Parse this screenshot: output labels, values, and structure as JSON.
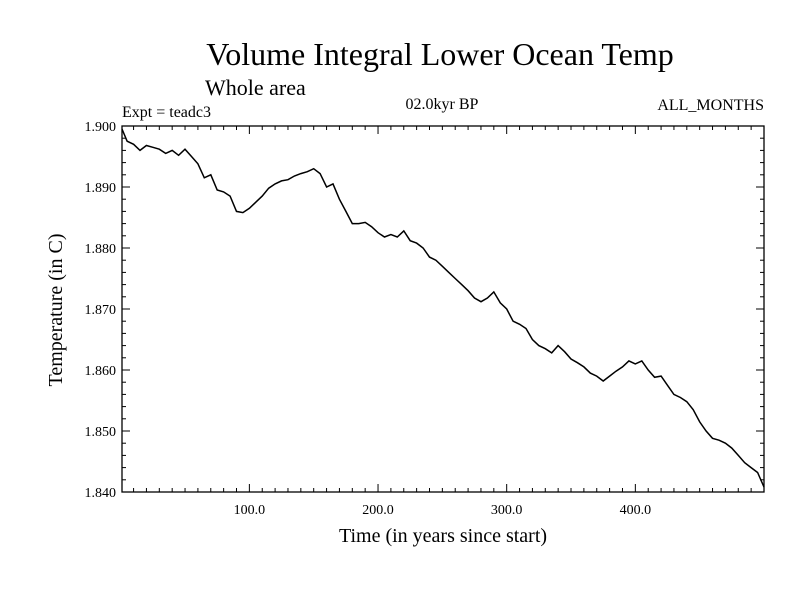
{
  "chart_data": {
    "type": "line",
    "title": "Volume Integral Lower Ocean Temp",
    "subtitle": "Whole area",
    "experiment": "Expt = teadc3",
    "period": "02.0kyr BP",
    "months": "ALL_MONTHS",
    "xlabel": "Time (in years since start)",
    "ylabel": "Temperature (in C)",
    "xlim": [
      1,
      500
    ],
    "ylim": [
      1.84,
      1.9
    ],
    "xticks": [
      100,
      200,
      300,
      400
    ],
    "xtick_labels": [
      "100.0",
      "200.0",
      "300.0",
      "400.0"
    ],
    "yticks": [
      1.84,
      1.85,
      1.86,
      1.87,
      1.88,
      1.89,
      1.9
    ],
    "ytick_labels": [
      "1.840",
      "1.850",
      "1.860",
      "1.870",
      "1.880",
      "1.890",
      "1.900"
    ],
    "series": [
      {
        "name": "Volume Integral Lower Ocean Temp",
        "color": "#000000",
        "x": [
          1,
          5,
          10,
          15,
          20,
          25,
          30,
          35,
          40,
          45,
          50,
          55,
          60,
          65,
          70,
          75,
          80,
          85,
          90,
          95,
          100,
          105,
          110,
          115,
          120,
          125,
          130,
          135,
          140,
          145,
          150,
          155,
          160,
          165,
          170,
          175,
          180,
          185,
          190,
          195,
          200,
          205,
          210,
          215,
          220,
          225,
          230,
          235,
          240,
          245,
          250,
          255,
          260,
          265,
          270,
          275,
          280,
          285,
          290,
          295,
          300,
          305,
          310,
          315,
          320,
          325,
          330,
          335,
          340,
          345,
          350,
          355,
          360,
          365,
          370,
          375,
          380,
          385,
          390,
          395,
          400,
          405,
          410,
          415,
          420,
          425,
          430,
          435,
          440,
          445,
          450,
          455,
          460,
          465,
          470,
          475,
          480,
          485,
          490,
          495,
          500
        ],
        "values": [
          1.8995,
          1.8975,
          1.897,
          1.896,
          1.8968,
          1.8965,
          1.8962,
          1.8955,
          1.896,
          1.8952,
          1.8962,
          1.895,
          1.8938,
          1.8915,
          1.892,
          1.8895,
          1.8892,
          1.8885,
          1.886,
          1.8858,
          1.8865,
          1.8875,
          1.8885,
          1.8898,
          1.8905,
          1.891,
          1.8912,
          1.8918,
          1.8922,
          1.8925,
          1.893,
          1.8922,
          1.89,
          1.8905,
          1.888,
          1.886,
          1.884,
          1.884,
          1.8842,
          1.8835,
          1.8825,
          1.8818,
          1.8822,
          1.8818,
          1.8828,
          1.8812,
          1.8808,
          1.88,
          1.8785,
          1.878,
          1.877,
          1.876,
          1.875,
          1.874,
          1.873,
          1.8718,
          1.8712,
          1.8718,
          1.8728,
          1.871,
          1.87,
          1.868,
          1.8675,
          1.8668,
          1.865,
          1.864,
          1.8635,
          1.8628,
          1.864,
          1.863,
          1.8618,
          1.8612,
          1.8605,
          1.8595,
          1.859,
          1.8582,
          1.859,
          1.8598,
          1.8605,
          1.8615,
          1.861,
          1.8615,
          1.86,
          1.8588,
          1.859,
          1.8575,
          1.856,
          1.8555,
          1.8548,
          1.8535,
          1.8515,
          1.85,
          1.8488,
          1.8485,
          1.848,
          1.8472,
          1.846,
          1.8448,
          1.844,
          1.8432,
          1.8408
        ]
      }
    ]
  }
}
